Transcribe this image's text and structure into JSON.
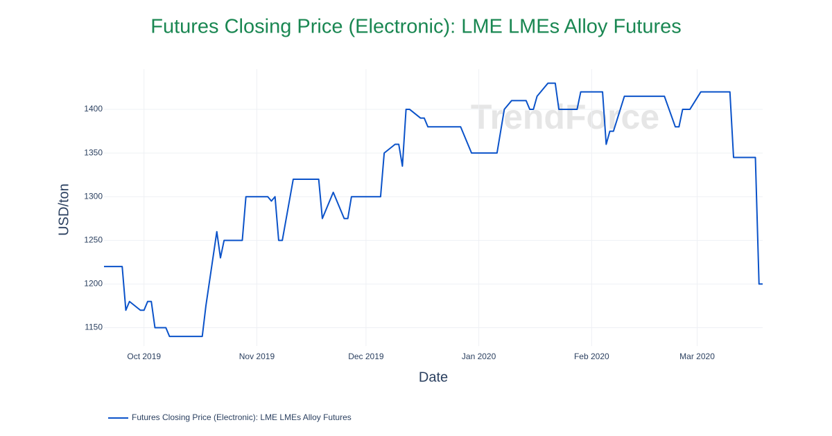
{
  "chart_data": {
    "type": "line",
    "title": "Futures Closing Price (Electronic): LME LMEs Alloy Futures",
    "x_label": "Date",
    "y_label": "USD/ton",
    "watermark": "TrendForce",
    "x": [
      "2019-09-20",
      "2019-09-25",
      "2019-09-26",
      "2019-09-27",
      "2019-09-30",
      "2019-10-01",
      "2019-10-02",
      "2019-10-03",
      "2019-10-04",
      "2019-10-07",
      "2019-10-08",
      "2019-10-17",
      "2019-10-18",
      "2019-10-21",
      "2019-10-22",
      "2019-10-23",
      "2019-10-28",
      "2019-10-29",
      "2019-11-04",
      "2019-11-05",
      "2019-11-06",
      "2019-11-07",
      "2019-11-08",
      "2019-11-11",
      "2019-11-18",
      "2019-11-19",
      "2019-11-22",
      "2019-11-25",
      "2019-11-26",
      "2019-11-27",
      "2019-12-05",
      "2019-12-06",
      "2019-12-09",
      "2019-12-10",
      "2019-12-11",
      "2019-12-12",
      "2019-12-13",
      "2019-12-16",
      "2019-12-17",
      "2019-12-18",
      "2019-12-27",
      "2019-12-30",
      "2020-01-06",
      "2020-01-08",
      "2020-01-10",
      "2020-01-14",
      "2020-01-15",
      "2020-01-16",
      "2020-01-17",
      "2020-01-20",
      "2020-01-22",
      "2020-01-23",
      "2020-01-28",
      "2020-01-29",
      "2020-02-04",
      "2020-02-05",
      "2020-02-06",
      "2020-02-07",
      "2020-02-10",
      "2020-02-21",
      "2020-02-24",
      "2020-02-25",
      "2020-02-26",
      "2020-02-28",
      "2020-03-02",
      "2020-03-10",
      "2020-03-11",
      "2020-03-17",
      "2020-03-18",
      "2020-03-19"
    ],
    "series": [
      {
        "name": "Futures Closing Price (Electronic): LME LMEs Alloy Futures",
        "color": "#0a52c9",
        "values": [
          1220,
          1220,
          1170,
          1180,
          1170,
          1170,
          1180,
          1180,
          1150,
          1150,
          1140,
          1140,
          1175,
          1260,
          1230,
          1250,
          1250,
          1300,
          1300,
          1295,
          1300,
          1250,
          1250,
          1320,
          1320,
          1275,
          1305,
          1275,
          1275,
          1300,
          1300,
          1350,
          1360,
          1360,
          1335,
          1400,
          1400,
          1390,
          1390,
          1380,
          1380,
          1350,
          1350,
          1400,
          1410,
          1410,
          1400,
          1400,
          1415,
          1430,
          1430,
          1400,
          1400,
          1420,
          1420,
          1360,
          1375,
          1375,
          1415,
          1415,
          1380,
          1380,
          1400,
          1400,
          1420,
          1420,
          1345,
          1345,
          1200,
          1200
        ]
      }
    ],
    "xlim": [
      "2019-09-20",
      "2020-03-19"
    ],
    "xticks": [
      {
        "value": "2019-10-01",
        "label": "Oct 2019"
      },
      {
        "value": "2019-11-01",
        "label": "Nov 2019"
      },
      {
        "value": "2019-12-01",
        "label": "Dec 2019"
      },
      {
        "value": "2020-01-01",
        "label": "Jan 2020"
      },
      {
        "value": "2020-02-01",
        "label": "Feb 2020"
      },
      {
        "value": "2020-03-01",
        "label": "Mar 2020"
      }
    ],
    "ylim": [
      1129,
      1446
    ],
    "yticks": [
      1150,
      1200,
      1250,
      1300,
      1350,
      1400
    ],
    "grid": true,
    "legend": "bottom-left"
  }
}
